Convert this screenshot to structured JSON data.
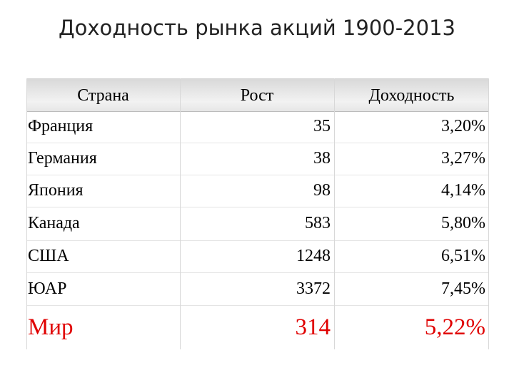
{
  "title": "Доходность рынка акций 1900-2013",
  "table": {
    "columns": [
      "Страна",
      "Рост",
      "Доходность"
    ],
    "rows": [
      [
        "Франция",
        "35",
        "3,20%"
      ],
      [
        "Германия",
        "38",
        "3,27%"
      ],
      [
        "Япония",
        "98",
        "4,14%"
      ],
      [
        "Канада",
        "583",
        "5,80%"
      ],
      [
        "США",
        "1248",
        "6,51%"
      ],
      [
        "ЮАР",
        "3372",
        "7,45%"
      ],
      [
        "Мир",
        "314",
        "5,22%"
      ]
    ]
  }
}
